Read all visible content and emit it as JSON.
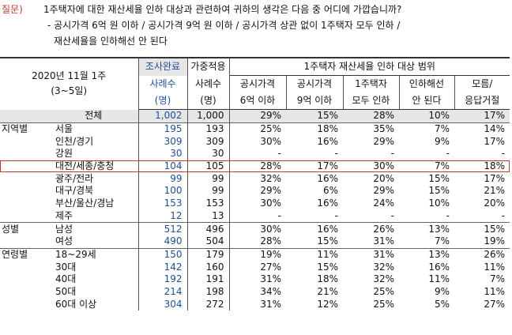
{
  "question": {
    "label": "질문)",
    "line1": "1주택자에 대한 재산세율 인하 대상과 관련하여 귀하의 생각은 다음 중 어디에 가깝습니까?",
    "line2": "- 공시가격 6억 원 이하 / 공시가격 9억 원 이하 / 공시가격 상관 없이 1주택자 모두 인하 /",
    "line3": "재산세율을 인하해선 안 된다"
  },
  "header": {
    "date_line1": "2020년 11월 1주",
    "date_line2": "(3~5일)",
    "sample_done_1": "조사완료",
    "sample_done_2": "사례수",
    "sample_done_3": "(명)",
    "sample_weighted_1": "가중적용",
    "sample_weighted_2": "사례수",
    "sample_weighted_3": "(명)",
    "range_title": "1주택자 재산세율 인하 대상 범위",
    "cols": [
      {
        "l1": "공시가격",
        "l2": "6억 이하"
      },
      {
        "l1": "공시가격",
        "l2": "9억 이하"
      },
      {
        "l1": "1주택자",
        "l2": "모두 인하"
      },
      {
        "l1": "인하해선",
        "l2": "안 된다"
      },
      {
        "l1": "모름/",
        "l2": "응답거절"
      }
    ]
  },
  "rows": [
    {
      "group": "",
      "label": "전체",
      "n": "1,002",
      "w": "1,000",
      "v": [
        "29%",
        "15%",
        "28%",
        "10%",
        "17%"
      ]
    },
    {
      "group": "지역별",
      "label": "서울",
      "n": "195",
      "w": "193",
      "v": [
        "25%",
        "18%",
        "35%",
        "7%",
        "14%"
      ]
    },
    {
      "group": "",
      "label": "인천/경기",
      "n": "309",
      "w": "309",
      "v": [
        "30%",
        "16%",
        "29%",
        "9%",
        "17%"
      ]
    },
    {
      "group": "",
      "label": "강원",
      "n": "30",
      "w": "30",
      "v": [
        "-",
        "-",
        "-",
        "-",
        "-"
      ]
    },
    {
      "group": "",
      "label": "대전/세종/충청",
      "n": "104",
      "w": "105",
      "v": [
        "28%",
        "17%",
        "30%",
        "7%",
        "18%"
      ]
    },
    {
      "group": "",
      "label": "광주/전라",
      "n": "99",
      "w": "99",
      "v": [
        "32%",
        "16%",
        "20%",
        "15%",
        "17%"
      ]
    },
    {
      "group": "",
      "label": "대구/경북",
      "n": "100",
      "w": "99",
      "v": [
        "29%",
        "6%",
        "29%",
        "15%",
        "21%"
      ]
    },
    {
      "group": "",
      "label": "부산/울산/경남",
      "n": "153",
      "w": "153",
      "v": [
        "30%",
        "16%",
        "24%",
        "10%",
        "20%"
      ]
    },
    {
      "group": "",
      "label": "제주",
      "n": "12",
      "w": "13",
      "v": [
        "-",
        "-",
        "-",
        "-",
        "-"
      ]
    },
    {
      "group": "성별",
      "label": "남성",
      "n": "512",
      "w": "496",
      "v": [
        "30%",
        "16%",
        "26%",
        "13%",
        "15%"
      ]
    },
    {
      "group": "",
      "label": "여성",
      "n": "490",
      "w": "504",
      "v": [
        "28%",
        "15%",
        "31%",
        "7%",
        "19%"
      ]
    },
    {
      "group": "연령별",
      "label": "18~29세",
      "n": "150",
      "w": "179",
      "v": [
        "19%",
        "11%",
        "31%",
        "13%",
        "26%"
      ]
    },
    {
      "group": "",
      "label": "30대",
      "n": "142",
      "w": "160",
      "v": [
        "27%",
        "15%",
        "32%",
        "16%",
        "11%"
      ]
    },
    {
      "group": "",
      "label": "40대",
      "n": "192",
      "w": "191",
      "v": [
        "31%",
        "18%",
        "32%",
        "11%",
        "7%"
      ]
    },
    {
      "group": "",
      "label": "50대",
      "n": "214",
      "w": "198",
      "v": [
        "34%",
        "21%",
        "25%",
        "9%",
        "11%"
      ]
    },
    {
      "group": "",
      "label": "60대 이상",
      "n": "304",
      "w": "272",
      "v": [
        "31%",
        "12%",
        "25%",
        "5%",
        "27%"
      ]
    }
  ],
  "highlight_row": "대전/세종/충청"
}
